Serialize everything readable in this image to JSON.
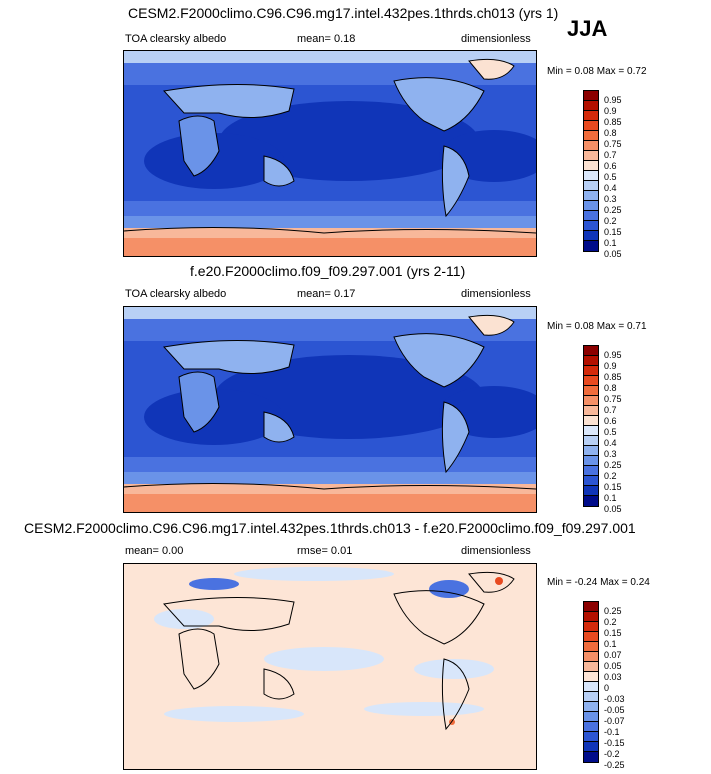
{
  "season": "JJA",
  "panels": [
    {
      "title": "CESM2.F2000climo.C96.C96.mg17.intel.432pes.1thrds.ch013 (yrs 1)",
      "variable": "TOA clearsky albedo",
      "stat1": "mean=   0.18",
      "stat2": "",
      "units": "dimensionless",
      "minmax": "Min =   0.08 Max =   0.72"
    },
    {
      "title": "f.e20.F2000climo.f09_f09.297.001 (yrs 2-11)",
      "variable": "TOA clearsky albedo",
      "stat1": "mean=   0.17",
      "stat2": "",
      "units": "dimensionless",
      "minmax": "Min =   0.08 Max =   0.71"
    },
    {
      "title": "CESM2.F2000climo.C96.C96.mg17.intel.432pes.1thrds.ch013 - f.e20.F2000climo.f09_f09.297.001",
      "variable": "mean=   0.00",
      "stat1": "rmse=   0.01",
      "stat2": "",
      "units": "dimensionless",
      "minmax": "Min =  -0.24 Max =   0.24"
    }
  ],
  "colorbars": {
    "absolute": {
      "labels": [
        "0.95",
        "0.9",
        "0.85",
        "0.8",
        "0.75",
        "0.7",
        "0.6",
        "0.5",
        "0.4",
        "0.3",
        "0.25",
        "0.2",
        "0.15",
        "0.1",
        "0.05"
      ],
      "colors": [
        "#8b0000",
        "#b31000",
        "#d42a0b",
        "#e84a20",
        "#f06c3c",
        "#f59067",
        "#f8b89a",
        "#fbe2d2",
        "#dbe8fb",
        "#b8d0f5",
        "#8fb2ef",
        "#6a93e8",
        "#4a72e0",
        "#2c55d2",
        "#1035b8",
        "#000c8a"
      ]
    },
    "difference": {
      "labels": [
        "0.25",
        "0.2",
        "0.15",
        "0.1",
        "0.07",
        "0.05",
        "0.03",
        "0",
        "-0.03",
        "-0.05",
        "-0.07",
        "-0.1",
        "-0.15",
        "-0.2",
        "-0.25"
      ],
      "colors": [
        "#8b0000",
        "#b31000",
        "#d42a0b",
        "#e84a20",
        "#f06c3c",
        "#f59067",
        "#f8b89a",
        "#fde5d6",
        "#d8e6fa",
        "#b8d0f5",
        "#8fb2ef",
        "#6a93e8",
        "#4a72e0",
        "#2c55d2",
        "#1035b8",
        "#000c8a"
      ]
    }
  }
}
